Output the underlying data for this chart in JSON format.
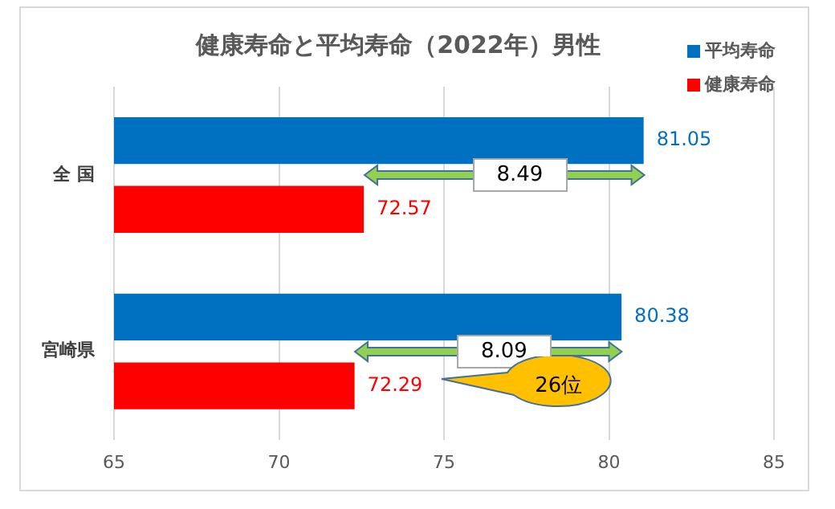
{
  "chart_data": {
    "type": "bar",
    "orientation": "horizontal",
    "title": "健康寿命と平均寿命（2022年）男性",
    "categories": [
      "全 国",
      "宮崎県"
    ],
    "series": [
      {
        "name": "平均寿命",
        "color": "#0070c0",
        "values": [
          81.05,
          80.38
        ]
      },
      {
        "name": "健康寿命",
        "color": "#ff0000",
        "values": [
          72.57,
          72.29
        ]
      }
    ],
    "xlim": [
      65,
      85
    ],
    "xticks": [
      65,
      70,
      75,
      80,
      85
    ],
    "grid": "x",
    "legend": "top right",
    "data_labels": true,
    "annotations": [
      "8.49",
      "8.09",
      "26位"
    ]
  }
}
